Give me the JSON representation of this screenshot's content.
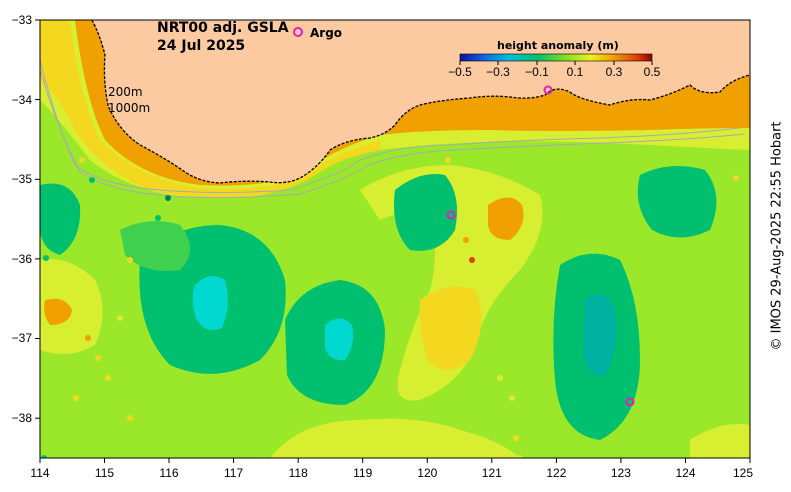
{
  "header": {
    "title_line1": "NRT00 adj. GSLA",
    "title_line2": "24 Jul 2025",
    "argo_label": "Argo"
  },
  "isobaths": {
    "label_shallow": "200m",
    "label_deep": "1000m"
  },
  "colorbar": {
    "title": "height anomaly (m)",
    "ticks": [
      "−0.5",
      "−0.3",
      "−0.1",
      "0.1",
      "0.3",
      "0.5"
    ]
  },
  "axes": {
    "lon_ticks": [
      "114",
      "115",
      "116",
      "117",
      "118",
      "119",
      "120",
      "121",
      "122",
      "123",
      "124",
      "125"
    ],
    "lat_ticks": [
      "−33",
      "−34",
      "−35",
      "−36",
      "−37",
      "−38"
    ]
  },
  "colors": {
    "land": "#fbcaa0",
    "background_field": "#9be82a",
    "low_anomaly": "#00c88c",
    "core_low": "#00d8d0",
    "high_anomaly": "#f0a000",
    "argo": "#e020c0"
  },
  "credit": "© IMOS 29-Aug-2025 22:55 Hobart"
}
